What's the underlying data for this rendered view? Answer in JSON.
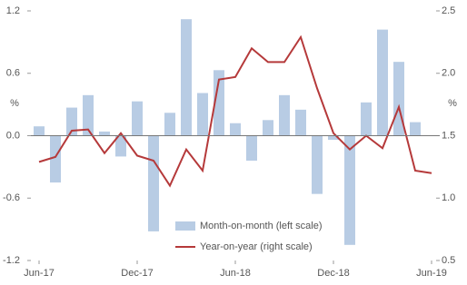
{
  "chart_data": {
    "type": "bar-line",
    "y_label": "%",
    "y2_label": "%",
    "categories": [
      "Jun-17",
      null,
      null,
      null,
      null,
      null,
      "Dec-17",
      null,
      null,
      null,
      null,
      null,
      "Jun-18",
      null,
      null,
      null,
      null,
      null,
      "Dec-18",
      null,
      null,
      null,
      null,
      null,
      "Jun-19"
    ],
    "series": [
      {
        "name": "Month-on-month (left scale)",
        "type": "bar",
        "color": "#b8cce4",
        "values": [
          0.09,
          -0.45,
          0.27,
          0.39,
          0.04,
          -0.2,
          0.33,
          -0.92,
          0.22,
          1.12,
          0.41,
          0.63,
          0.12,
          -0.24,
          0.15,
          0.39,
          0.25,
          -0.56,
          -0.04,
          -1.05,
          0.32,
          1.02,
          0.71,
          0.13,
          null
        ]
      },
      {
        "name": "Year-on-year (right scale)",
        "type": "line",
        "axis": "y2",
        "color": "#b5393a",
        "values": [
          1.29,
          1.33,
          1.54,
          1.55,
          1.36,
          1.52,
          1.34,
          1.3,
          1.1,
          1.39,
          1.22,
          1.95,
          1.97,
          2.2,
          2.09,
          2.09,
          2.29,
          1.88,
          1.52,
          1.39,
          1.5,
          1.4,
          1.73,
          1.22,
          1.2
        ]
      }
    ],
    "ylim": [
      -1.2,
      1.2
    ],
    "yticks": [
      -1.2,
      -0.6,
      {
        "value": 0,
        "label": "0.0"
      },
      0.6,
      1.2
    ],
    "y2lim": [
      0.5,
      2.5
    ],
    "y2ticks": [
      0.5,
      {
        "value": 1,
        "label": "1.0"
      },
      1.5,
      {
        "value": 2,
        "label": "2.0"
      },
      2.5
    ],
    "legend": "lower-right"
  }
}
